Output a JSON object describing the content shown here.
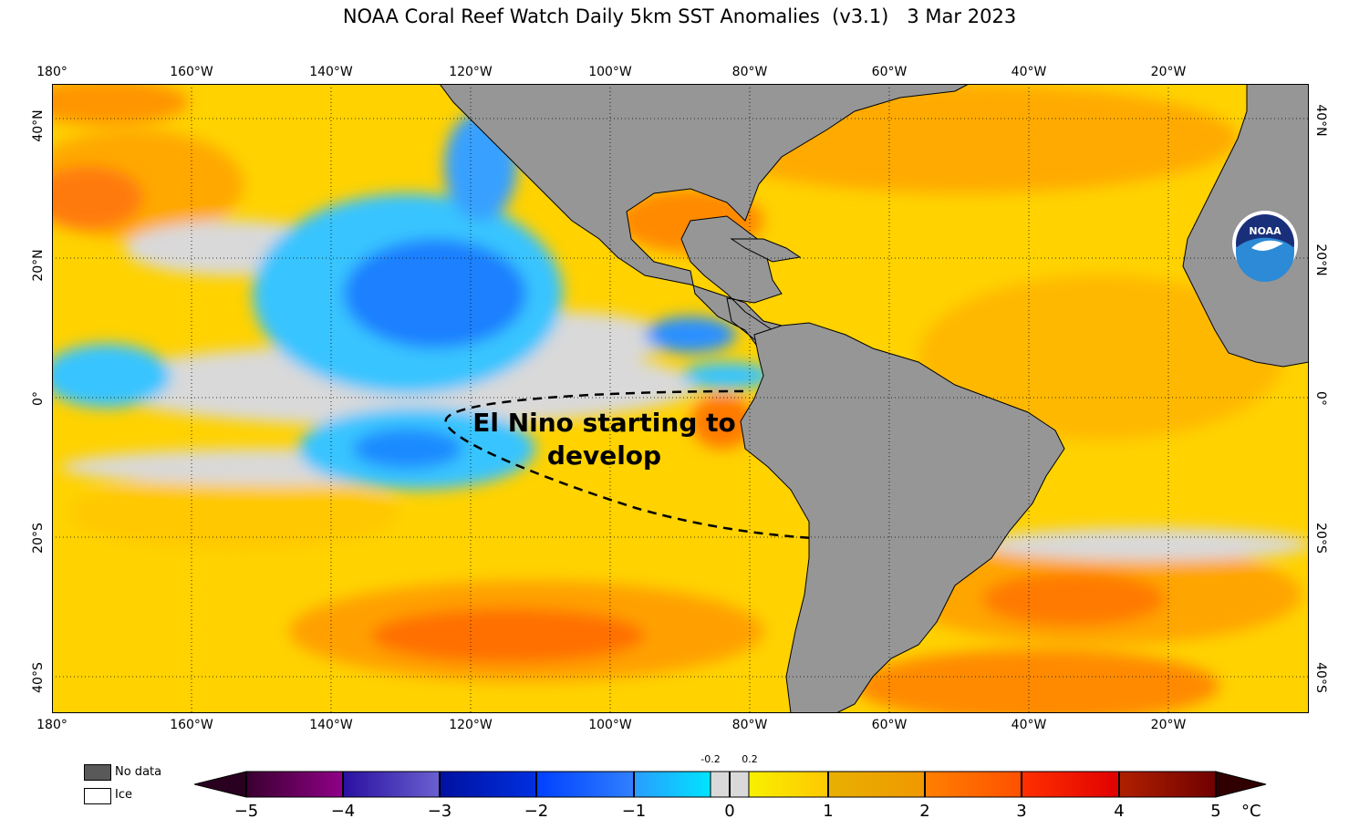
{
  "title": "NOAA Coral Reef Watch Daily 5km SST Anomalies  (v3.1)   3 Mar 2023",
  "lon_labels": [
    "180°",
    "160°W",
    "140°W",
    "120°W",
    "100°W",
    "80°W",
    "60°W",
    "40°W",
    "20°W"
  ],
  "lat_labels": [
    "40°N",
    "20°N",
    "0°",
    "20°S",
    "40°S"
  ],
  "annotation": {
    "line1": "El Nino starting to",
    "line2": "develop"
  },
  "legend": {
    "no_data": "No data",
    "ice": "Ice"
  },
  "colorbar": {
    "ticks": [
      "−5",
      "−4",
      "−3",
      "−2",
      "−1",
      "0",
      "1",
      "2",
      "3",
      "4",
      "5"
    ],
    "small_ticks": [
      "-0.2",
      "0.2"
    ],
    "unit": "°C"
  },
  "colors": {
    "land": "#969696",
    "no_data": "#595959",
    "near_zero": "#d9d9d9",
    "warm_1": "#ffd000",
    "warm_2": "#ffab00",
    "warm_3": "#ff6a00",
    "cool_1": "#38c4ff",
    "cool_2": "#1f6cff"
  }
}
